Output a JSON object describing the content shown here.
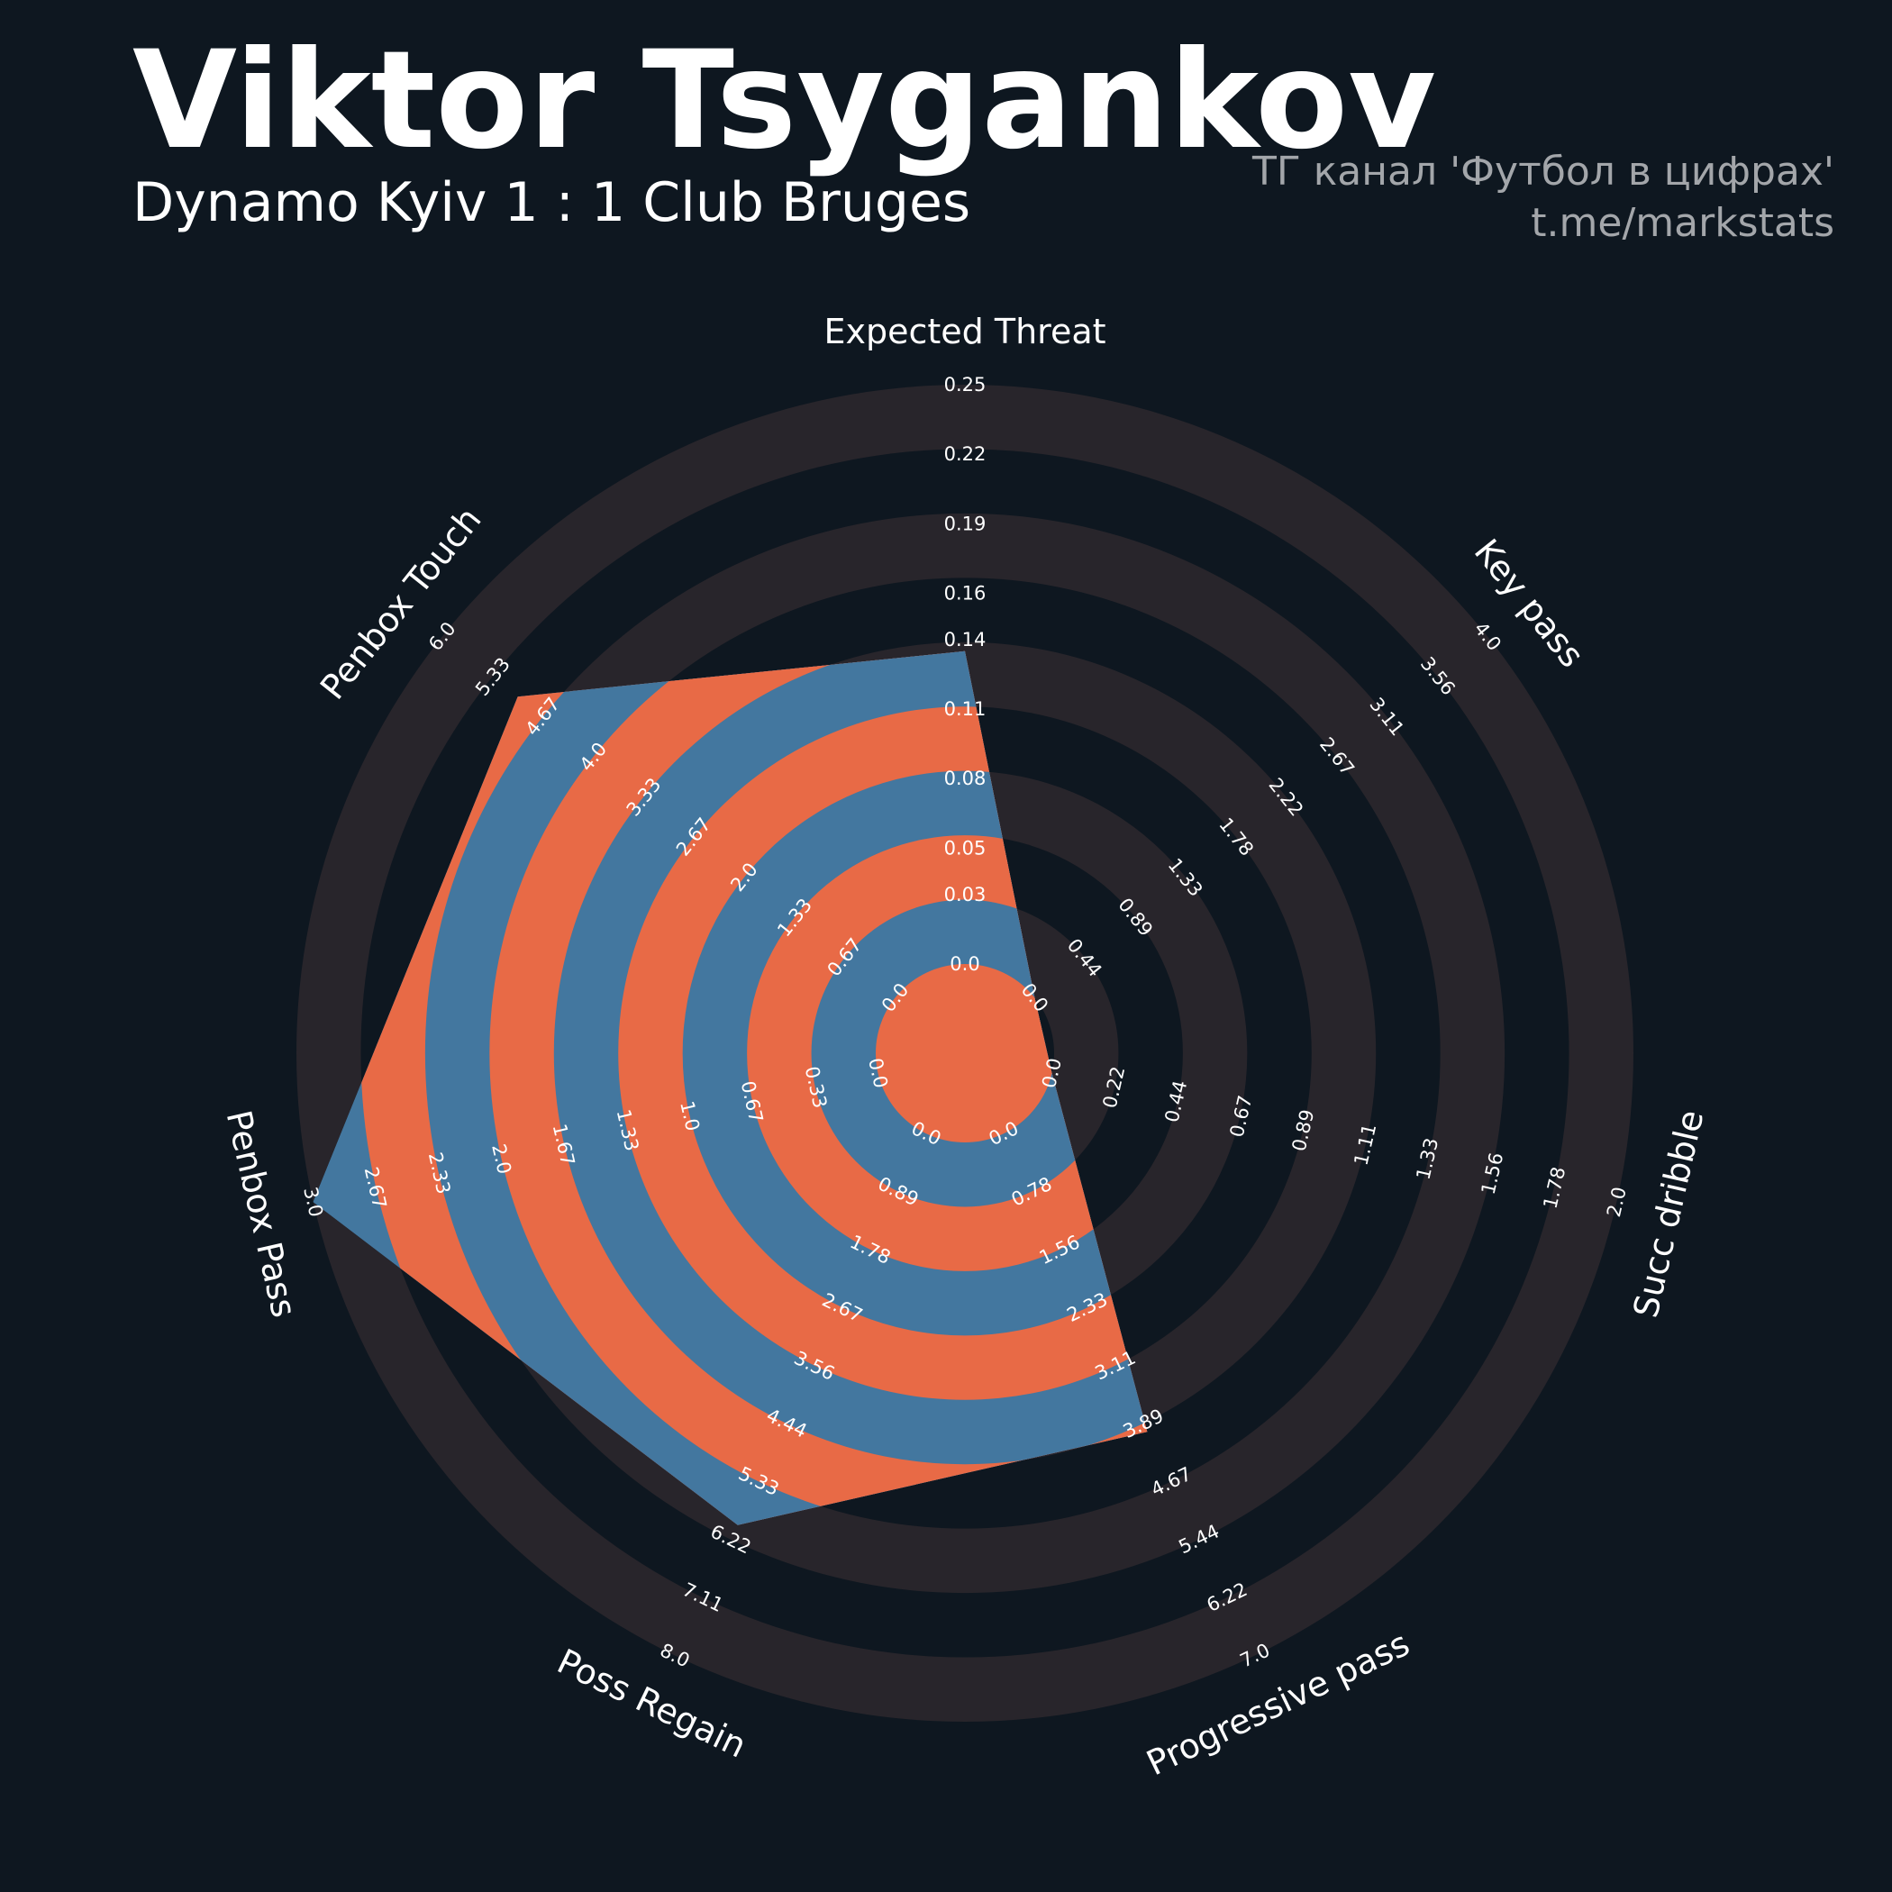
{
  "chart_data": {
    "type": "radar",
    "title": "Viktor Tsygankov",
    "subtitle": "Dynamo Kyiv 1 : 1 Club Bruges",
    "credits": [
      "ТГ канал 'Футбол в цифрах'",
      "t.me/markstats"
    ],
    "categories": [
      "Expected Threat",
      "Key pass",
      "Succ dribble",
      "Progressive pass",
      "Poss Regain",
      "Penbox Pass",
      "Penbox Touch"
    ],
    "axes": [
      {
        "lim": [
          0,
          0.25
        ],
        "ticks": [
          {
            "value": 0,
            "label": "0.0"
          },
          0.03,
          0.05,
          0.08,
          0.11,
          0.14,
          0.16,
          0.19,
          0.22,
          0.25
        ]
      },
      {
        "lim": [
          0,
          4
        ],
        "ticks": [
          {
            "value": 0,
            "label": "0.0"
          },
          0.44,
          0.89,
          1.33,
          1.78,
          2.22,
          2.67,
          3.11,
          3.56,
          {
            "value": 4,
            "label": "4.0"
          }
        ]
      },
      {
        "lim": [
          0,
          2
        ],
        "ticks": [
          {
            "value": 0,
            "label": "0.0"
          },
          0.22,
          0.44,
          0.67,
          0.89,
          1.11,
          1.33,
          1.56,
          1.78,
          {
            "value": 2,
            "label": "2.0"
          }
        ]
      },
      {
        "lim": [
          0,
          7
        ],
        "ticks": [
          {
            "value": 0,
            "label": "0.0"
          },
          0.78,
          1.56,
          2.33,
          3.11,
          3.89,
          4.67,
          5.44,
          6.22,
          {
            "value": 7,
            "label": "7.0"
          }
        ]
      },
      {
        "lim": [
          0,
          8
        ],
        "ticks": [
          {
            "value": 0,
            "label": "0.0"
          },
          0.89,
          1.78,
          2.67,
          3.56,
          4.44,
          5.33,
          6.22,
          7.11,
          {
            "value": 8,
            "label": "8.0"
          }
        ]
      },
      {
        "lim": [
          0,
          3
        ],
        "ticks": [
          {
            "value": 0,
            "label": "0.0"
          },
          0.33,
          0.67,
          {
            "value": 1,
            "label": "1.0"
          },
          1.33,
          1.67,
          {
            "value": 2,
            "label": "2.0"
          },
          2.33,
          2.67,
          {
            "value": 3,
            "label": "3.0"
          }
        ]
      },
      {
        "lim": [
          0,
          6
        ],
        "ticks": [
          {
            "value": 0,
            "label": "0.0"
          },
          0.67,
          1.33,
          {
            "value": 2,
            "label": "2.0"
          },
          2.67,
          3.33,
          {
            "value": 4,
            "label": "4.0"
          },
          4.67,
          5.33,
          {
            "value": 6,
            "label": "6.0"
          }
        ]
      }
    ],
    "series": [
      {
        "values": [
          0.135,
          0,
          0,
          4,
          6,
          3,
          5
        ],
        "colors": [
          "#43779f",
          "#e86a46"
        ]
      }
    ],
    "ring_colors": [
      "#28252b",
      "#0e1720"
    ]
  }
}
